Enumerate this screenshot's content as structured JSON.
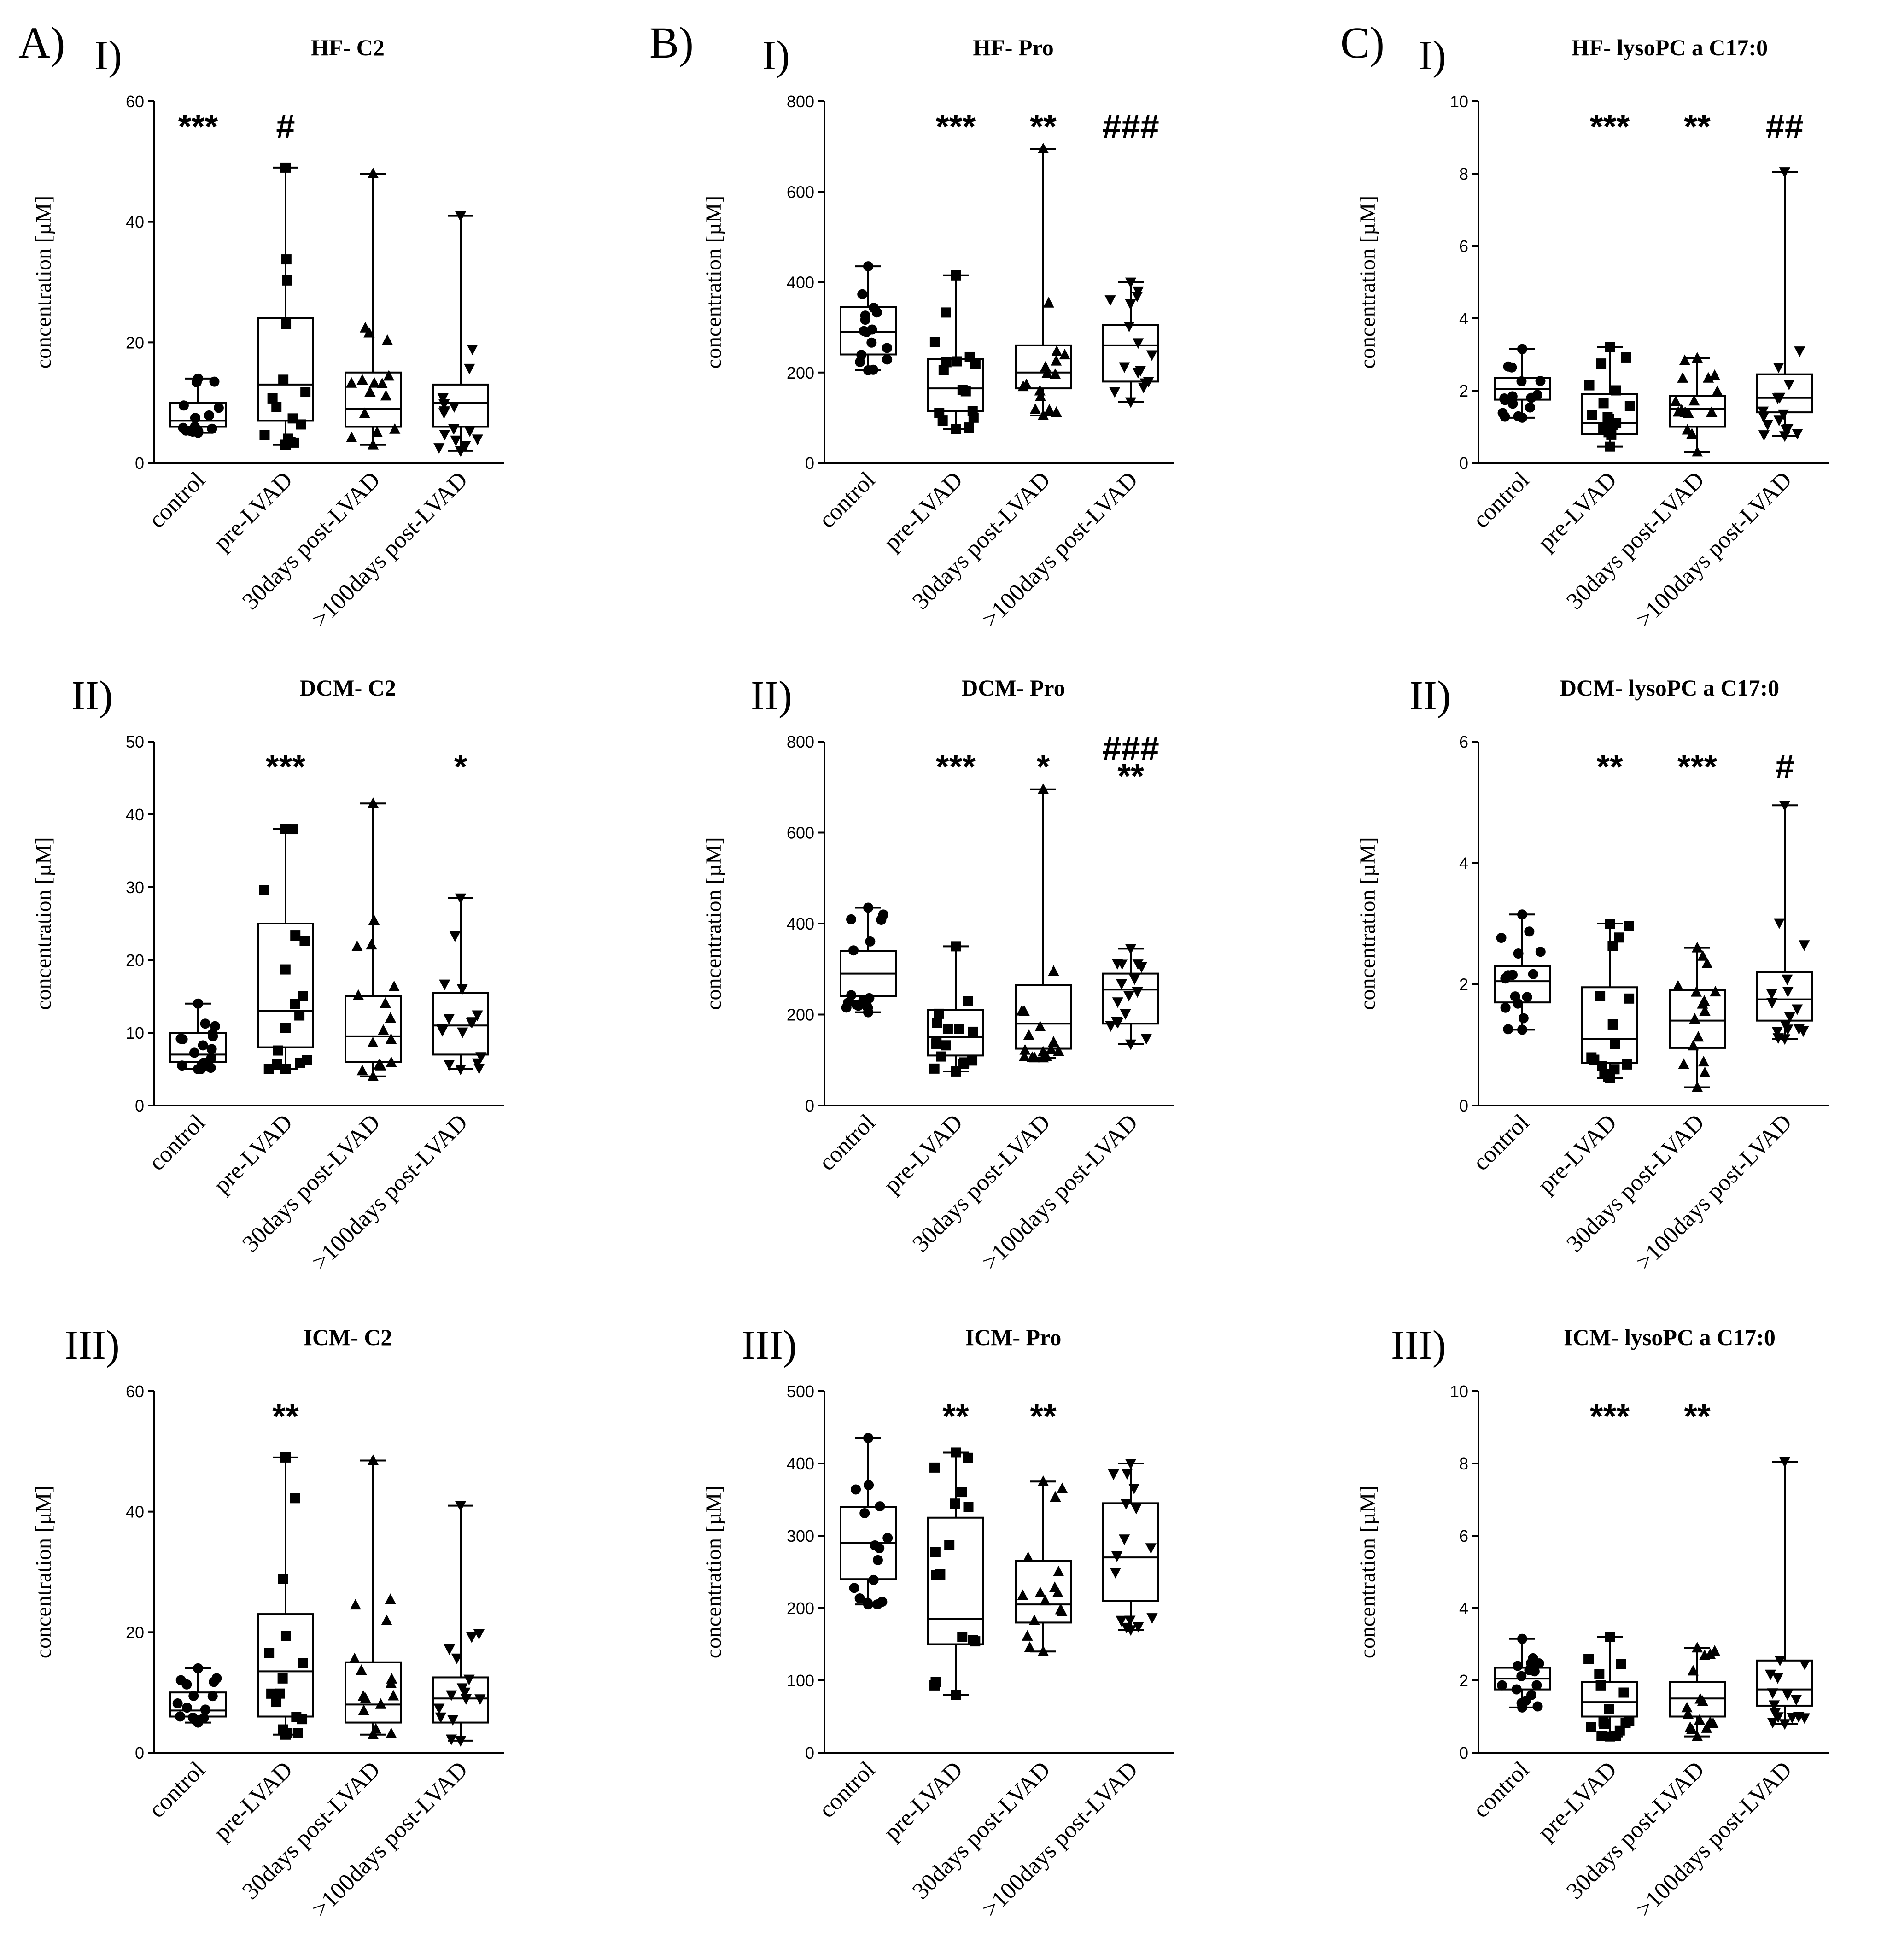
{
  "figure": {
    "panel_labels": [
      "A)",
      "B)",
      "C)"
    ]
  },
  "chart_data": [
    {
      "id": "a1",
      "type": "box",
      "panel": "A)",
      "row_label": "I)",
      "title": "HF- C2",
      "ylabel": "concentration [µM]",
      "categories": [
        "control",
        "pre-LVAD",
        "30days post-LVAD",
        ">100days post-LVAD"
      ],
      "ylim": [
        0,
        60
      ],
      "yticks": [
        0,
        20,
        40,
        60
      ],
      "boxes": [
        {
          "min": 5,
          "q1": 6,
          "median": 7,
          "q3": 10,
          "max": 14
        },
        {
          "min": 3,
          "q1": 7,
          "median": 13,
          "q3": 24,
          "max": 49
        },
        {
          "min": 3,
          "q1": 6,
          "median": 9,
          "q3": 15,
          "max": 48
        },
        {
          "min": 2,
          "q1": 6,
          "median": 10,
          "q3": 13,
          "max": 41
        }
      ],
      "annotations": [
        "***",
        "#",
        "",
        ""
      ]
    },
    {
      "id": "b1",
      "type": "box",
      "panel": "B)",
      "row_label": "I)",
      "title": "HF- Pro",
      "ylabel": "concentration [µM]",
      "categories": [
        "control",
        "pre-LVAD",
        "30days post-LVAD",
        ">100days post-LVAD"
      ],
      "ylim": [
        0,
        800
      ],
      "yticks": [
        0,
        200,
        400,
        600,
        800
      ],
      "boxes": [
        {
          "min": 205,
          "q1": 240,
          "median": 290,
          "q3": 345,
          "max": 435
        },
        {
          "min": 75,
          "q1": 115,
          "median": 165,
          "q3": 230,
          "max": 415
        },
        {
          "min": 105,
          "q1": 165,
          "median": 200,
          "q3": 260,
          "max": 695
        },
        {
          "min": 135,
          "q1": 180,
          "median": 260,
          "q3": 305,
          "max": 400
        }
      ],
      "annotations": [
        "",
        "***",
        "**",
        "###"
      ]
    },
    {
      "id": "c1",
      "type": "box",
      "panel": "C)",
      "row_label": "I)",
      "title": "HF- lysoPC a C17:0",
      "ylabel": "concentration [µM]",
      "categories": [
        "control",
        "pre-LVAD",
        "30days post-LVAD",
        ">100days post-LVAD"
      ],
      "ylim": [
        0,
        10
      ],
      "yticks": [
        0,
        2,
        4,
        6,
        8,
        10
      ],
      "boxes": [
        {
          "min": 1.25,
          "q1": 1.75,
          "median": 2.05,
          "q3": 2.35,
          "max": 3.15
        },
        {
          "min": 0.45,
          "q1": 0.8,
          "median": 1.1,
          "q3": 1.9,
          "max": 3.2
        },
        {
          "min": 0.3,
          "q1": 1.0,
          "median": 1.5,
          "q3": 1.85,
          "max": 2.9
        },
        {
          "min": 0.75,
          "q1": 1.4,
          "median": 1.8,
          "q3": 2.45,
          "max": 8.05
        }
      ],
      "annotations": [
        "",
        "***",
        "**",
        "##"
      ]
    },
    {
      "id": "a2",
      "type": "box",
      "panel": "A)",
      "row_label": "II)",
      "title": "DCM- C2",
      "ylabel": "concentration [µM]",
      "categories": [
        "control",
        "pre-LVAD",
        "30days post-LVAD",
        ">100days post-LVAD"
      ],
      "ylim": [
        0,
        50
      ],
      "yticks": [
        0,
        10,
        20,
        30,
        40,
        50
      ],
      "boxes": [
        {
          "min": 5,
          "q1": 6,
          "median": 7,
          "q3": 10,
          "max": 14
        },
        {
          "min": 5,
          "q1": 8,
          "median": 13,
          "q3": 25,
          "max": 38
        },
        {
          "min": 4,
          "q1": 6,
          "median": 9.5,
          "q3": 15,
          "max": 41.5
        },
        {
          "min": 5,
          "q1": 7,
          "median": 11,
          "q3": 15.5,
          "max": 28.5
        }
      ],
      "annotations": [
        "",
        "***",
        "",
        "*"
      ]
    },
    {
      "id": "b2",
      "type": "box",
      "panel": "B)",
      "row_label": "II)",
      "title": "DCM- Pro",
      "ylabel": "concentration [µM]",
      "categories": [
        "control",
        "pre-LVAD",
        "30days post-LVAD",
        ">100days post-LVAD"
      ],
      "ylim": [
        0,
        800
      ],
      "yticks": [
        0,
        200,
        400,
        600,
        800
      ],
      "boxes": [
        {
          "min": 205,
          "q1": 240,
          "median": 290,
          "q3": 340,
          "max": 435
        },
        {
          "min": 75,
          "q1": 110,
          "median": 150,
          "q3": 210,
          "max": 350
        },
        {
          "min": 105,
          "q1": 125,
          "median": 180,
          "q3": 265,
          "max": 695
        },
        {
          "min": 135,
          "q1": 180,
          "median": 255,
          "q3": 290,
          "max": 345
        }
      ],
      "annotations": [
        "",
        "***",
        "*",
        "###\n**"
      ]
    },
    {
      "id": "c2",
      "type": "box",
      "panel": "C)",
      "row_label": "II)",
      "title": "DCM- lysoPC a C17:0",
      "ylabel": "concentration [µM]",
      "categories": [
        "control",
        "pre-LVAD",
        "30days post-LVAD",
        ">100days post-LVAD"
      ],
      "ylim": [
        0,
        6
      ],
      "yticks": [
        0,
        2,
        4,
        6
      ],
      "boxes": [
        {
          "min": 1.25,
          "q1": 1.7,
          "median": 2.05,
          "q3": 2.3,
          "max": 3.15
        },
        {
          "min": 0.45,
          "q1": 0.7,
          "median": 1.1,
          "q3": 1.95,
          "max": 3.0
        },
        {
          "min": 0.3,
          "q1": 0.95,
          "median": 1.4,
          "q3": 1.9,
          "max": 2.6
        },
        {
          "min": 1.1,
          "q1": 1.4,
          "median": 1.75,
          "q3": 2.2,
          "max": 4.95
        }
      ],
      "annotations": [
        "",
        "**",
        "***",
        "#"
      ]
    },
    {
      "id": "a3",
      "type": "box",
      "panel": "A)",
      "row_label": "III)",
      "title": "ICM- C2",
      "ylabel": "concentration [µM]",
      "categories": [
        "control",
        "pre-LVAD",
        "30days post-LVAD",
        ">100days post-LVAD"
      ],
      "ylim": [
        0,
        60
      ],
      "yticks": [
        0,
        20,
        40,
        60
      ],
      "boxes": [
        {
          "min": 5,
          "q1": 6,
          "median": 7,
          "q3": 10,
          "max": 14
        },
        {
          "min": 3,
          "q1": 6,
          "median": 13.5,
          "q3": 23,
          "max": 49
        },
        {
          "min": 3,
          "q1": 5,
          "median": 8,
          "q3": 15,
          "max": 48.5
        },
        {
          "min": 2,
          "q1": 5,
          "median": 9,
          "q3": 12.5,
          "max": 41
        }
      ],
      "annotations": [
        "",
        "**",
        "",
        ""
      ]
    },
    {
      "id": "b3",
      "type": "box",
      "panel": "B)",
      "row_label": "III)",
      "title": "ICM- Pro",
      "ylabel": "concentration [µM]",
      "categories": [
        "control",
        "pre-LVAD",
        "30days post-LVAD",
        ">100days post-LVAD"
      ],
      "ylim": [
        0,
        500
      ],
      "yticks": [
        0,
        100,
        200,
        300,
        400,
        500
      ],
      "boxes": [
        {
          "min": 205,
          "q1": 240,
          "median": 290,
          "q3": 340,
          "max": 435
        },
        {
          "min": 80,
          "q1": 150,
          "median": 185,
          "q3": 325,
          "max": 415
        },
        {
          "min": 140,
          "q1": 180,
          "median": 205,
          "q3": 265,
          "max": 375
        },
        {
          "min": 170,
          "q1": 210,
          "median": 270,
          "q3": 345,
          "max": 400
        }
      ],
      "annotations": [
        "",
        "**",
        "**",
        ""
      ]
    },
    {
      "id": "c3",
      "type": "box",
      "panel": "C)",
      "row_label": "III)",
      "title": "ICM- lysoPC a C17:0",
      "ylabel": "concentration [µM]",
      "categories": [
        "control",
        "pre-LVAD",
        "30days post-LVAD",
        ">100days post-LVAD"
      ],
      "ylim": [
        0,
        10
      ],
      "yticks": [
        0,
        2,
        4,
        6,
        8,
        10
      ],
      "boxes": [
        {
          "min": 1.25,
          "q1": 1.75,
          "median": 2.05,
          "q3": 2.35,
          "max": 3.15
        },
        {
          "min": 0.45,
          "q1": 1.0,
          "median": 1.4,
          "q3": 1.95,
          "max": 3.2
        },
        {
          "min": 0.45,
          "q1": 1.0,
          "median": 1.5,
          "q3": 1.95,
          "max": 2.9
        },
        {
          "min": 0.8,
          "q1": 1.3,
          "median": 1.75,
          "q3": 2.55,
          "max": 8.05
        }
      ],
      "annotations": [
        "",
        "***",
        "**",
        ""
      ]
    }
  ]
}
